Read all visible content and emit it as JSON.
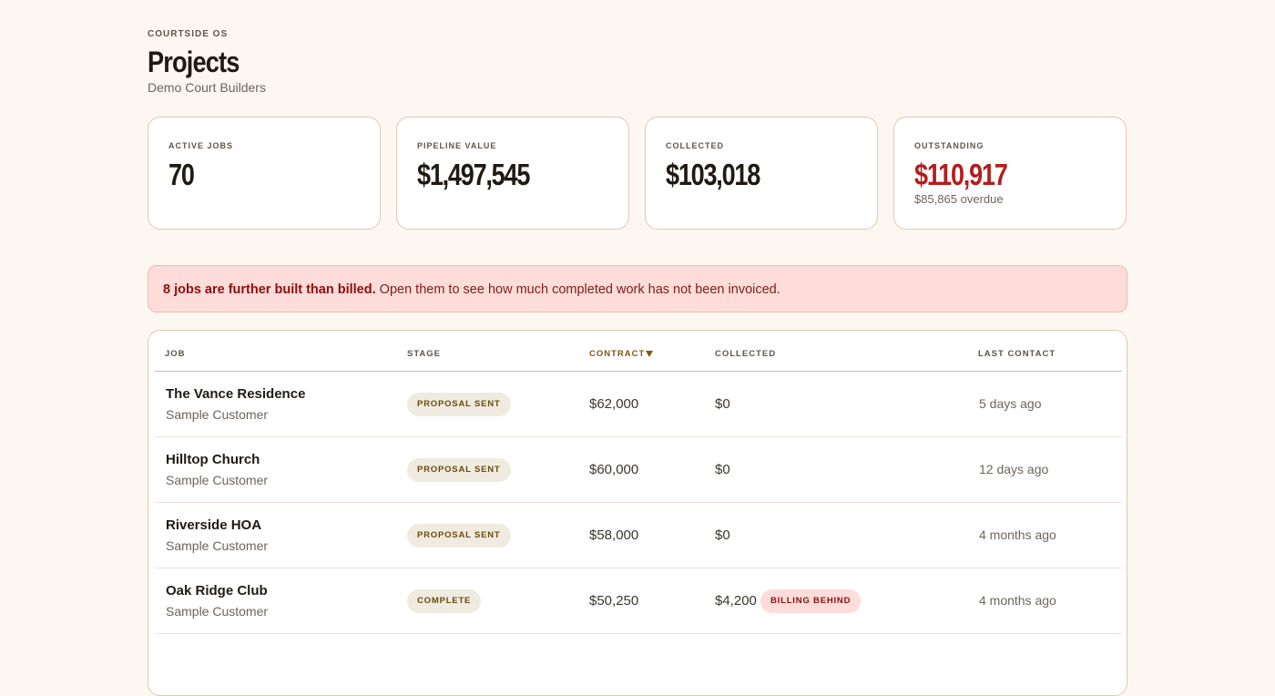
{
  "header": {
    "eyebrow": "COURTSIDE OS",
    "title": "Projects",
    "subtitle": "Demo Court Builders"
  },
  "stats": [
    {
      "label": "ACTIVE JOBS",
      "value": "70"
    },
    {
      "label": "PIPELINE VALUE",
      "value": "$1,497,545"
    },
    {
      "label": "COLLECTED",
      "value": "$103,018"
    },
    {
      "label": "OUTSTANDING",
      "value": "$110,917",
      "note": "$85,865 overdue"
    }
  ],
  "alert": {
    "strong": "8 jobs are further built than billed.",
    "text": "Open them to see how much completed work has not been invoiced."
  },
  "table": {
    "columns": [
      "JOB",
      "STAGE",
      "CONTRACT",
      "COLLECTED",
      "LAST CONTACT"
    ],
    "rows": [
      {
        "job": "The Vance Residence",
        "customer": "Sample Customer",
        "stage": "PROPOSAL SENT",
        "contract": "$62,000",
        "collected": "$0",
        "last_contact": "5 days ago"
      },
      {
        "job": "Hilltop Church",
        "customer": "Sample Customer",
        "stage": "PROPOSAL SENT",
        "contract": "$60,000",
        "collected": "$0",
        "last_contact": "12 days ago"
      },
      {
        "job": "Riverside HOA",
        "customer": "Sample Customer",
        "stage": "PROPOSAL SENT",
        "contract": "$58,000",
        "collected": "$0",
        "last_contact": "4 months ago"
      },
      {
        "job": "Oak Ridge Club",
        "customer": "Sample Customer",
        "stage": "COMPLETE",
        "contract": "$50,250",
        "collected": "$4,200",
        "flag": "BILLING BEHIND",
        "last_contact": "4 months ago"
      }
    ]
  }
}
